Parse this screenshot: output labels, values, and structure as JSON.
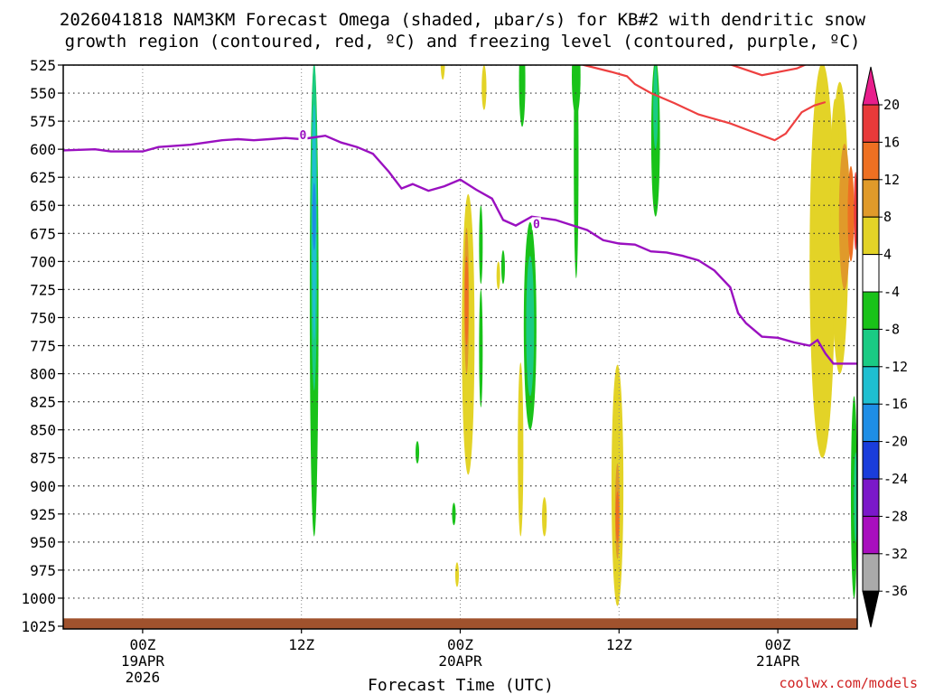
{
  "chart_data": {
    "type": "heatmap",
    "title_line1": "2026041818 NAM3KM Forecast Omega (shaded, μbar/s) for KB#2 with dendritic snow",
    "title_line2": "growth region (contoured, red, ºC) and freezing level (contoured, purple, ºC)",
    "xlabel": "Forecast Time (UTC)",
    "credit": "coolwx.com/models",
    "x_range_hours": [
      -5,
      45
    ],
    "y_levels": [
      525,
      550,
      575,
      600,
      625,
      650,
      675,
      700,
      725,
      750,
      775,
      800,
      825,
      850,
      875,
      900,
      925,
      950,
      975,
      1000,
      1025
    ],
    "y_tick_labels": [
      "525",
      "550",
      "575",
      "600",
      "625",
      "650",
      "675",
      "700",
      "725",
      "750",
      "775",
      "800",
      "825",
      "850",
      "875",
      "900",
      "925",
      "950",
      "975",
      "1000",
      "1025"
    ],
    "x_ticks": [
      {
        "hour": 0,
        "label": "00Z",
        "sub1": "19APR",
        "sub2": "2026"
      },
      {
        "hour": 10,
        "label": "12Z",
        "sub1": "",
        "sub2": ""
      },
      {
        "hour": 20,
        "label": "00Z",
        "sub1": "20APR",
        "sub2": ""
      },
      {
        "hour": 30,
        "label": "12Z",
        "sub1": "",
        "sub2": ""
      },
      {
        "hour": 40,
        "label": "00Z",
        "sub1": "21APR",
        "sub2": ""
      }
    ],
    "colorbar": {
      "ticks": [
        "20",
        "16",
        "12",
        "8",
        "4",
        "-4",
        "-8",
        "-12",
        "-16",
        "-20",
        "-24",
        "-28",
        "-32",
        "-36"
      ],
      "colors": {
        "top_arrow": "#e81e8c",
        "20": "#e83a3a",
        "16": "#ee7022",
        "12": "#e09a2a",
        "8": "#e3d327",
        "4": "#ffffff",
        "-4": "#19c219",
        "-8": "#1acb84",
        "-12": "#1fbfd1",
        "-16": "#1e8ee6",
        "-20": "#1a3ddb",
        "-24": "#7b18c9",
        "-28": "#a80fbe",
        "-32": "#aaaaaa",
        "bottom_arrow": "#000000"
      }
    },
    "freezing_level_label": "0",
    "freezing_level": [
      {
        "h": -5,
        "p": 601
      },
      {
        "h": -3,
        "p": 600
      },
      {
        "h": -2,
        "p": 602
      },
      {
        "h": 0,
        "p": 602
      },
      {
        "h": 1,
        "p": 598
      },
      {
        "h": 2,
        "p": 597
      },
      {
        "h": 3,
        "p": 596
      },
      {
        "h": 4,
        "p": 594
      },
      {
        "h": 5,
        "p": 592
      },
      {
        "h": 6,
        "p": 591
      },
      {
        "h": 7,
        "p": 592
      },
      {
        "h": 8,
        "p": 591
      },
      {
        "h": 9,
        "p": 590
      },
      {
        "h": 10,
        "p": 591
      },
      {
        "h": 11,
        "p": 589
      },
      {
        "h": 11.5,
        "p": 588
      },
      {
        "h": 12.5,
        "p": 594
      },
      {
        "h": 13.5,
        "p": 598
      },
      {
        "h": 14.5,
        "p": 604
      },
      {
        "h": 15.5,
        "p": 620
      },
      {
        "h": 16.3,
        "p": 635
      },
      {
        "h": 17,
        "p": 631
      },
      {
        "h": 18,
        "p": 637
      },
      {
        "h": 19,
        "p": 633
      },
      {
        "h": 20,
        "p": 627
      },
      {
        "h": 21,
        "p": 636
      },
      {
        "h": 22,
        "p": 644
      },
      {
        "h": 22.7,
        "p": 663
      },
      {
        "h": 23.5,
        "p": 668
      },
      {
        "h": 24.5,
        "p": 660
      },
      {
        "h": 26,
        "p": 663
      },
      {
        "h": 28,
        "p": 672
      },
      {
        "h": 29,
        "p": 681
      },
      {
        "h": 30,
        "p": 684
      },
      {
        "h": 31,
        "p": 685
      },
      {
        "h": 32,
        "p": 691
      },
      {
        "h": 33,
        "p": 692
      },
      {
        "h": 34,
        "p": 695
      },
      {
        "h": 35,
        "p": 699
      },
      {
        "h": 36,
        "p": 708
      },
      {
        "h": 37,
        "p": 723
      },
      {
        "h": 37.5,
        "p": 746
      },
      {
        "h": 38,
        "p": 755
      },
      {
        "h": 39,
        "p": 767
      },
      {
        "h": 40,
        "p": 768
      },
      {
        "h": 41,
        "p": 772
      },
      {
        "h": 42,
        "p": 775
      },
      {
        "h": 42.5,
        "p": 770
      },
      {
        "h": 43,
        "p": 782
      },
      {
        "h": 43.5,
        "p": 791
      },
      {
        "h": 45,
        "p": 791
      }
    ],
    "dgz_contours": [
      [
        {
          "h": 26.8,
          "p": 521
        },
        {
          "h": 27.8,
          "p": 525
        },
        {
          "h": 29.5,
          "p": 531
        },
        {
          "h": 30.5,
          "p": 535
        },
        {
          "h": 31,
          "p": 542
        },
        {
          "h": 32,
          "p": 550
        },
        {
          "h": 33.5,
          "p": 559
        },
        {
          "h": 35,
          "p": 569
        },
        {
          "h": 37,
          "p": 577
        },
        {
          "h": 38.5,
          "p": 585
        },
        {
          "h": 39.8,
          "p": 592
        },
        {
          "h": 40.5,
          "p": 586
        },
        {
          "h": 41.5,
          "p": 567
        },
        {
          "h": 42.3,
          "p": 561
        },
        {
          "h": 43,
          "p": 558
        }
      ],
      [
        {
          "h": 36.5,
          "p": 522
        },
        {
          "h": 39,
          "p": 534
        },
        {
          "h": 41.2,
          "p": 528
        },
        {
          "h": 42,
          "p": 523
        }
      ]
    ],
    "omega_regions": [
      {
        "h": 10.8,
        "p0": 523,
        "p1": 945,
        "w": 0.55,
        "v": -6
      },
      {
        "h": 10.8,
        "p0": 523,
        "p1": 815,
        "w": 0.4,
        "v": -10
      },
      {
        "h": 10.8,
        "p0": 560,
        "p1": 770,
        "w": 0.26,
        "v": -14
      },
      {
        "h": 10.8,
        "p0": 630,
        "p1": 690,
        "w": 0.12,
        "v": -18
      },
      {
        "h": 20.5,
        "p0": 640,
        "p1": 890,
        "w": 0.8,
        "v": 6
      },
      {
        "h": 20.5,
        "p0": 650,
        "p1": 855,
        "w": 0.5,
        "v": 10
      },
      {
        "h": 20.4,
        "p0": 670,
        "p1": 800,
        "w": 0.3,
        "v": 14
      },
      {
        "h": 20.4,
        "p0": 695,
        "p1": 775,
        "w": 0.18,
        "v": 18
      },
      {
        "h": 24.4,
        "p0": 665,
        "p1": 850,
        "w": 0.8,
        "v": -6
      },
      {
        "h": 24.4,
        "p0": 695,
        "p1": 820,
        "w": 0.5,
        "v": -10
      },
      {
        "h": 29.9,
        "p0": 792,
        "p1": 1007,
        "w": 0.75,
        "v": 6
      },
      {
        "h": 29.9,
        "p0": 845,
        "p1": 990,
        "w": 0.5,
        "v": 10
      },
      {
        "h": 29.9,
        "p0": 880,
        "p1": 965,
        "w": 0.3,
        "v": 14
      },
      {
        "h": 29.9,
        "p0": 905,
        "p1": 950,
        "w": 0.14,
        "v": 18
      },
      {
        "h": 42.8,
        "p0": 523,
        "p1": 875,
        "w": 1.6,
        "v": 6
      },
      {
        "h": 43.9,
        "p0": 540,
        "p1": 800,
        "w": 1.1,
        "v": 6
      },
      {
        "h": 43.6,
        "p0": 555,
        "p1": 740,
        "w": 0.6,
        "v": 10
      },
      {
        "h": 44.2,
        "p0": 595,
        "p1": 725,
        "w": 0.7,
        "v": 14
      },
      {
        "h": 44.6,
        "p0": 615,
        "p1": 700,
        "w": 0.4,
        "v": 18
      },
      {
        "h": 44.9,
        "p0": 620,
        "p1": 690,
        "w": 0.2,
        "v": 22
      },
      {
        "h": 44.8,
        "p0": 820,
        "p1": 1000,
        "w": 0.4,
        "v": -6
      },
      {
        "h": 44.9,
        "p0": 870,
        "p1": 950,
        "w": 0.2,
        "v": -10
      },
      {
        "h": 18.9,
        "p0": 505,
        "p1": 538,
        "w": 0.28,
        "v": 6
      },
      {
        "h": 21.5,
        "p0": 525,
        "p1": 565,
        "w": 0.3,
        "v": 6
      },
      {
        "h": 23.8,
        "p0": 790,
        "p1": 945,
        "w": 0.35,
        "v": 6
      },
      {
        "h": 25.3,
        "p0": 910,
        "p1": 945,
        "w": 0.3,
        "v": 6
      },
      {
        "h": 19.8,
        "p0": 968,
        "p1": 990,
        "w": 0.22,
        "v": 6
      },
      {
        "h": 22.4,
        "p0": 700,
        "p1": 725,
        "w": 0.2,
        "v": 6
      },
      {
        "h": 21.3,
        "p0": 650,
        "p1": 720,
        "w": 0.2,
        "v": -6
      },
      {
        "h": 21.3,
        "p0": 725,
        "p1": 830,
        "w": 0.2,
        "v": -6
      },
      {
        "h": 22.7,
        "p0": 690,
        "p1": 720,
        "w": 0.15,
        "v": -6
      },
      {
        "h": 19.6,
        "p0": 915,
        "p1": 935,
        "w": 0.12,
        "v": -6
      },
      {
        "h": 17.3,
        "p0": 860,
        "p1": 880,
        "w": 0.15,
        "v": -6
      },
      {
        "h": 23.9,
        "p0": 498,
        "p1": 580,
        "w": 0.4,
        "v": -6
      },
      {
        "h": 27.3,
        "p0": 500,
        "p1": 715,
        "w": 0.3,
        "v": -6
      },
      {
        "h": 27.3,
        "p0": 500,
        "p1": 570,
        "w": 0.55,
        "v": -6
      },
      {
        "h": 32.3,
        "p0": 520,
        "p1": 660,
        "w": 0.55,
        "v": -6
      },
      {
        "h": 32.3,
        "p0": 525,
        "p1": 600,
        "w": 0.3,
        "v": -10
      }
    ]
  }
}
